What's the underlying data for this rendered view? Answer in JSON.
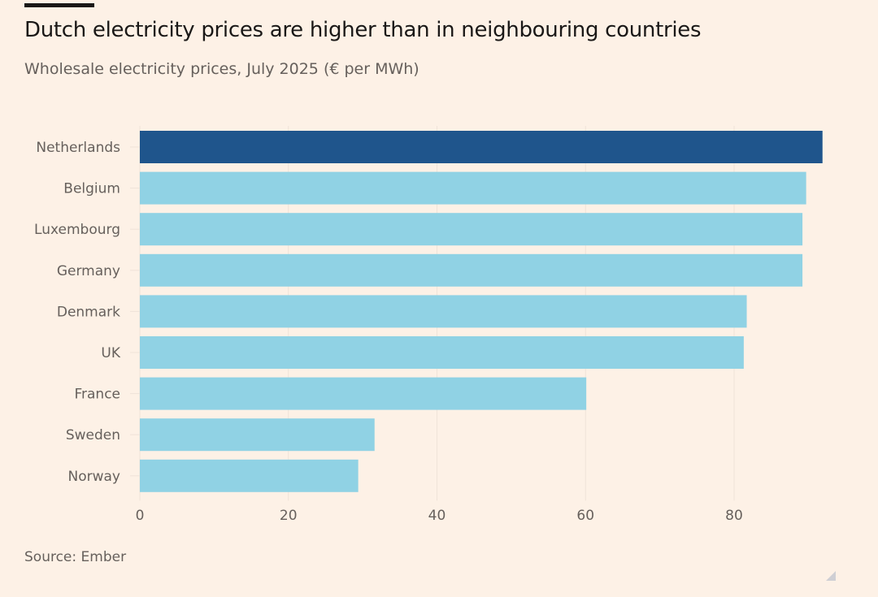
{
  "chart_data": {
    "type": "bar",
    "orientation": "horizontal",
    "title": "Dutch electricity prices are higher than in neighbouring countries",
    "subtitle": "Wholesale electricity prices, July 2025 (€ per MWh)",
    "xlabel": "",
    "ylabel": "",
    "categories": [
      "Netherlands",
      "Belgium",
      "Luxembourg",
      "Germany",
      "Denmark",
      "UK",
      "France",
      "Sweden",
      "Norway"
    ],
    "values": [
      91.9,
      89.7,
      89.2,
      89.2,
      81.7,
      81.3,
      60.1,
      31.6,
      29.4
    ],
    "highlight": "Netherlands",
    "colors": {
      "highlight": "#1f558c",
      "default": "#90d2e4",
      "grid": "#efe3d8"
    },
    "xlim": [
      0,
      100
    ],
    "xticks": [
      0,
      20,
      40,
      60,
      80
    ],
    "grid": true,
    "source": "Source: Ember"
  }
}
